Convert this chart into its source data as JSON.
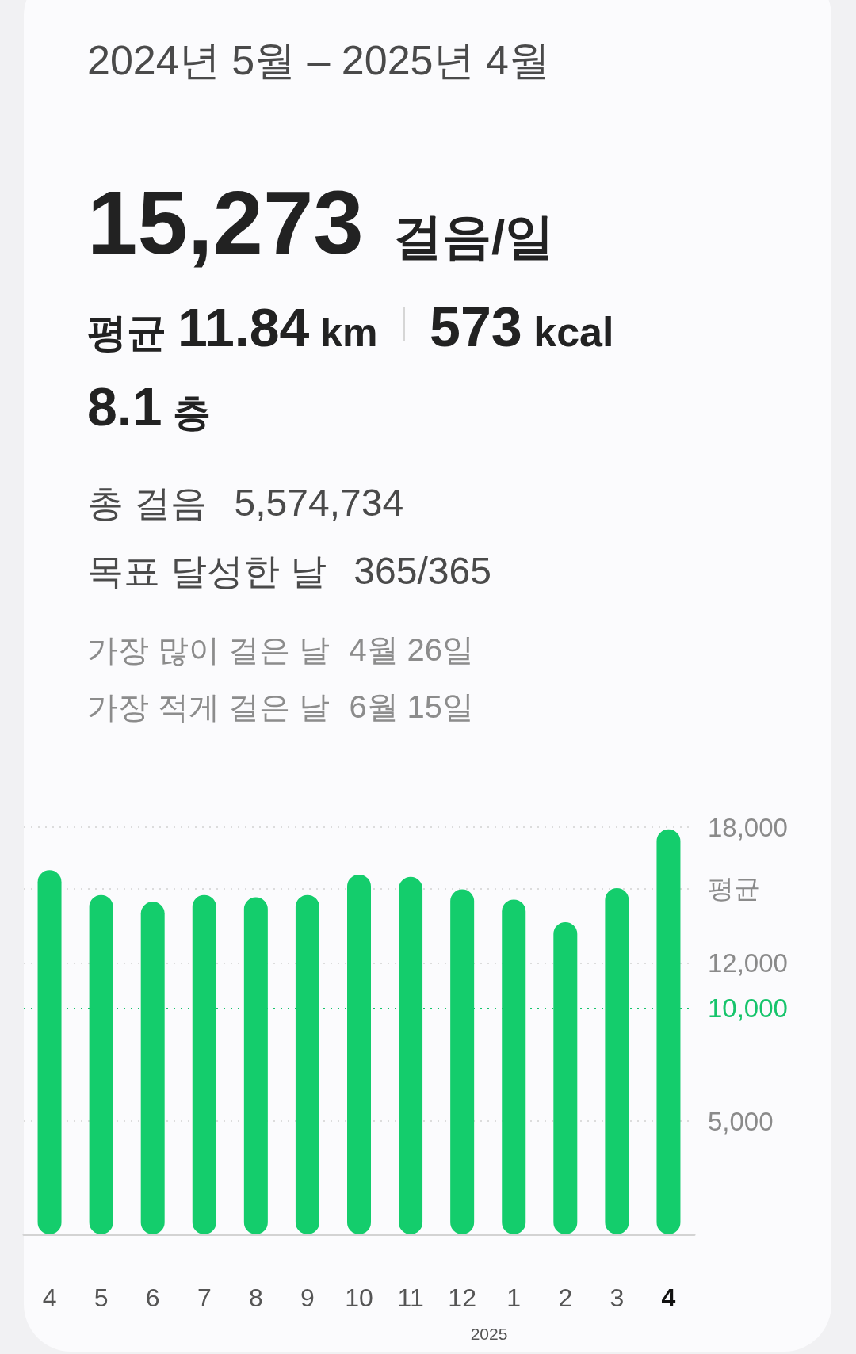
{
  "chart_data": {
    "type": "bar",
    "title": "2024년 5월 – 2025년 4월",
    "annotations": [
      "15,273 걸음/일",
      "평균 11.84 km",
      "573 kcal",
      "8.1 층",
      "총 걸음 5,574,734",
      "목표 달성한 날 365/365",
      "가장 많이 걸은 날 4월 26일",
      "가장 적게 걸은 날 6월 15일",
      "2025"
    ],
    "categories": [
      "4",
      "5",
      "6",
      "7",
      "8",
      "9",
      "10",
      "11",
      "12",
      "1",
      "2",
      "3",
      "4"
    ],
    "values": [
      16100,
      15000,
      14700,
      15000,
      14900,
      15000,
      15900,
      15800,
      15250,
      14800,
      13800,
      15300,
      17900
    ],
    "color": "#14cd6c",
    "ylim": [
      0,
      18000
    ],
    "yticks": [
      {
        "value": 5000,
        "label": "5,000"
      },
      {
        "value": 12000,
        "label": "12,000"
      },
      {
        "value": 18000,
        "label": "18,000"
      }
    ],
    "grid": "y",
    "ref_lines": [
      {
        "axis": "y",
        "value": 10000,
        "label": "10,000",
        "color": "#16c46b",
        "line_style": "dotted"
      },
      {
        "axis": "y",
        "value": 15273,
        "label": "평균",
        "line_style": "dotted"
      }
    ]
  }
}
